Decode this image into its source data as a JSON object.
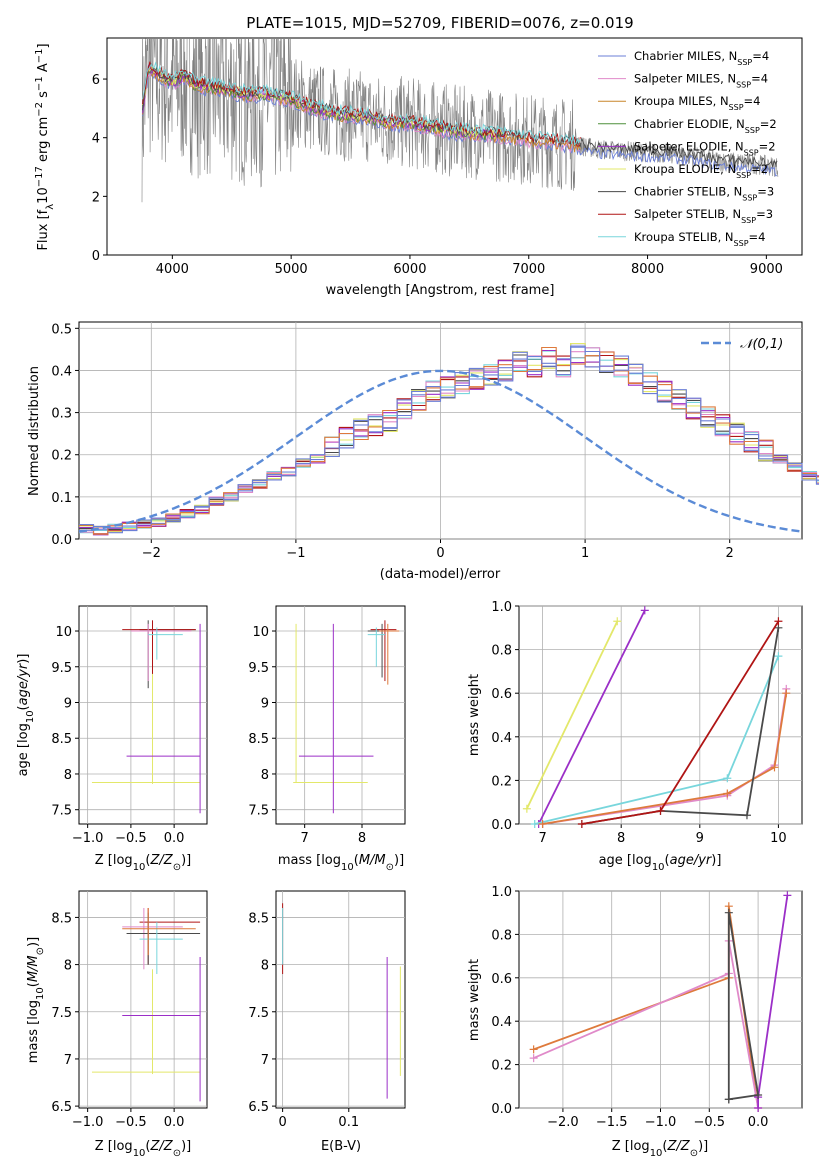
{
  "figure": {
    "title": "PLATE=1015, MJD=52709, FIBERID=0076, z=0.019"
  },
  "colors": {
    "series": [
      "#6b7fd7",
      "#e08ac9",
      "#c8862a",
      "#4f8f3a",
      "#9b2fc7",
      "#e3e86a",
      "#4a4a4a",
      "#b01515",
      "#78d6dc"
    ],
    "data": "#808080",
    "gauss": "#5b8bd6",
    "panel_bright": [
      "#4a4a4a",
      "#b01515",
      "#78d6dc",
      "#e3e86a",
      "#9b2fc7",
      "#e08ac9",
      "#6b7fd7",
      "#de7a3c"
    ]
  },
  "chart_data": [
    {
      "id": "spectrum",
      "type": "line",
      "xlabel": "wavelength [Angstrom, rest frame]",
      "ylabel": "Flux [f_λ 10⁻¹⁷ erg cm⁻² s⁻¹ Å⁻¹]",
      "xlim": [
        3450,
        9300
      ],
      "ylim": [
        0,
        7.4
      ],
      "xticks": [
        4000,
        5000,
        6000,
        7000,
        8000,
        9000
      ],
      "yticks": [
        0,
        2,
        4,
        6
      ],
      "legend_position": "top-right",
      "legend": [
        "Chabrier MILES, N_SSP=4",
        "Salpeter MILES, N_SSP=4",
        "Kroupa MILES, N_SSP=4",
        "Chabrier ELODIE, N_SSP=2",
        "Salpeter ELODIE, N_SSP=2",
        "Kroupa ELODIE, N_SSP=2",
        "Chabrier STELIB, N_SSP=3",
        "Salpeter STELIB, N_SSP=3",
        "Kroupa STELIB, N_SSP=4"
      ],
      "model_continuum": {
        "x": [
          3750,
          3800,
          3900,
          4000,
          4100,
          4200,
          4400,
          4600,
          4800,
          5000,
          5200,
          5400,
          5600,
          5800,
          6000,
          6200,
          6400,
          6600,
          6800,
          7000,
          7200,
          7400,
          7600,
          7800,
          8000,
          8200,
          8400,
          8600,
          8800,
          9000,
          9100
        ],
        "y": [
          5.0,
          6.4,
          6.1,
          5.9,
          6.1,
          5.8,
          5.7,
          5.5,
          5.5,
          5.3,
          5.0,
          4.8,
          4.75,
          4.55,
          4.5,
          4.35,
          4.2,
          4.15,
          4.05,
          3.95,
          3.85,
          3.75,
          3.6,
          3.55,
          3.5,
          3.45,
          3.35,
          3.2,
          3.15,
          3.05,
          3.0
        ]
      },
      "data_end": 9100
    },
    {
      "id": "residuals",
      "type": "line",
      "xlabel": "(data-model)/error",
      "ylabel": "Normed distribution",
      "xlim": [
        -2.5,
        2.5
      ],
      "ylim": [
        0,
        0.515
      ],
      "xticks": [
        -2,
        -1,
        0,
        1,
        2
      ],
      "yticks": [
        0.0,
        0.1,
        0.2,
        0.3,
        0.4,
        0.5
      ],
      "legend": [
        "𝒩(0,1)"
      ],
      "legend_position": "top-right",
      "gaussian": {
        "mu": 0,
        "sigma": 1
      },
      "bin_width": 0.1,
      "bin_start": -2.5,
      "hist_values": [
        0.025,
        0.02,
        0.025,
        0.03,
        0.035,
        0.04,
        0.05,
        0.06,
        0.07,
        0.09,
        0.1,
        0.12,
        0.13,
        0.15,
        0.16,
        0.18,
        0.19,
        0.22,
        0.24,
        0.26,
        0.27,
        0.28,
        0.31,
        0.33,
        0.35,
        0.36,
        0.37,
        0.38,
        0.39,
        0.4,
        0.42,
        0.41,
        0.43,
        0.41,
        0.44,
        0.43,
        0.42,
        0.41,
        0.39,
        0.37,
        0.35,
        0.33,
        0.31,
        0.29,
        0.27,
        0.25,
        0.23,
        0.21,
        0.19,
        0.17,
        0.15,
        0.14,
        0.12,
        0.11,
        0.1,
        0.09,
        0.08,
        0.07,
        0.065,
        0.055,
        0.05,
        0.045,
        0.04,
        0.035,
        0.03,
        0.03,
        0.025,
        0.025,
        0.025,
        0.025
      ]
    },
    {
      "id": "age_vs_Z",
      "type": "scatter",
      "xlabel": "Z [log10(Z/Z⊙)]",
      "ylabel": "age [log10(age/yr)]",
      "xlim": [
        -1.1,
        0.38
      ],
      "ylim": [
        7.3,
        10.35
      ],
      "xticks": [
        -1.0,
        -0.5,
        0.0
      ],
      "xtick_labels": [
        "−1.0",
        "−0.5",
        "0.0"
      ],
      "yticks": [
        7.5,
        8.0,
        8.5,
        9.0,
        9.5,
        10.0
      ]
    },
    {
      "id": "age_vs_mass",
      "type": "scatter",
      "xlabel": "mass [log10(M/M⊙)]",
      "xlim": [
        6.5,
        8.75
      ],
      "ylim": [
        7.3,
        10.35
      ],
      "xticks": [
        7,
        8
      ],
      "yticks": [
        7.5,
        8.0,
        8.5,
        9.0,
        9.5,
        10.0
      ]
    },
    {
      "id": "weight_vs_age",
      "type": "line",
      "xlabel": "age [log10(age/yr)]",
      "ylabel": "mass weight",
      "xlim": [
        6.7,
        10.3
      ],
      "ylim": [
        0,
        1.0
      ],
      "xticks": [
        7,
        8,
        9,
        10
      ],
      "yticks": [
        0.0,
        0.2,
        0.4,
        0.6,
        0.8,
        1.0
      ],
      "series": [
        {
          "x": [
            6.8,
            7.95
          ],
          "y": [
            0.07,
            0.93
          ]
        },
        {
          "x": [
            6.95,
            8.3
          ],
          "y": [
            0.0,
            0.98
          ]
        },
        {
          "x": [
            6.9,
            9.35,
            10.0
          ],
          "y": [
            0.0,
            0.21,
            0.77
          ]
        },
        {
          "x": [
            7.0,
            9.35,
            9.95,
            10.1
          ],
          "y": [
            0.0,
            0.13,
            0.27,
            0.62
          ]
        },
        {
          "x": [
            7.0,
            9.35,
            9.95,
            10.1
          ],
          "y": [
            0.0,
            0.14,
            0.26,
            0.6
          ]
        },
        {
          "x": [
            7.5,
            8.5,
            9.6,
            10.0
          ],
          "y": [
            0.0,
            0.06,
            0.04,
            0.9
          ]
        },
        {
          "x": [
            7.5,
            8.5,
            10.0
          ],
          "y": [
            0.0,
            0.06,
            0.93
          ]
        }
      ]
    },
    {
      "id": "mass_vs_Z",
      "type": "scatter",
      "xlabel": "Z [log10(Z/Z⊙)]",
      "ylabel": "mass [log10(M/M⊙)]",
      "xlim": [
        -1.1,
        0.38
      ],
      "ylim": [
        6.48,
        8.78
      ],
      "xticks": [
        -1.0,
        -0.5,
        0.0
      ],
      "xtick_labels": [
        "−1.0",
        "−0.5",
        "0.0"
      ],
      "yticks": [
        6.5,
        7.0,
        7.5,
        8.0,
        8.5
      ]
    },
    {
      "id": "mass_vs_EBV",
      "type": "scatter",
      "xlabel": "E(B-V)",
      "xlim": [
        -0.01,
        0.185
      ],
      "ylim": [
        6.48,
        8.78
      ],
      "xticks": [
        0.0,
        0.1
      ],
      "yticks": [
        6.5,
        7.0,
        7.5,
        8.0,
        8.5
      ]
    },
    {
      "id": "weight_vs_Z",
      "type": "line",
      "xlabel": "Z [log10(Z/Z⊙)]",
      "ylabel": "mass weight",
      "xlim": [
        -2.45,
        0.45
      ],
      "ylim": [
        0,
        1.0
      ],
      "xticks": [
        -2.0,
        -1.5,
        -1.0,
        -0.5,
        0.0
      ],
      "xtick_labels": [
        "−2.0",
        "−1.5",
        "−1.0",
        "−0.5",
        "0.0"
      ],
      "yticks": [
        0.0,
        0.2,
        0.4,
        0.6,
        0.8,
        1.0
      ],
      "series": [
        {
          "x": [
            -2.3,
            -0.3,
            -0.3,
            0.0
          ],
          "y": [
            0.27,
            0.6,
            0.93,
            0.0
          ]
        },
        {
          "x": [
            -2.3,
            -0.3,
            -0.3,
            0.0
          ],
          "y": [
            0.23,
            0.62,
            0.77,
            0.0
          ]
        },
        {
          "x": [
            0.0,
            0.0,
            0.3
          ],
          "y": [
            0.0,
            0.05,
            0.98
          ]
        },
        {
          "x": [
            -0.3,
            0.0,
            -0.3,
            -0.3
          ],
          "y": [
            0.04,
            0.06,
            0.9,
            0.04
          ]
        }
      ]
    }
  ]
}
